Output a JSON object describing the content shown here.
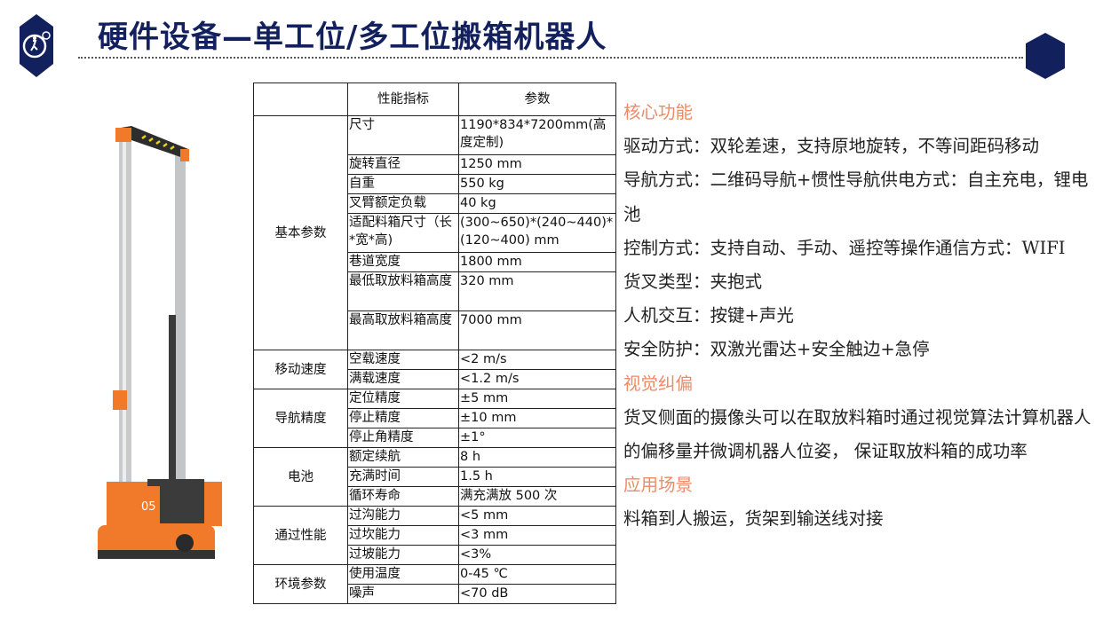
{
  "header": {
    "title": "硬件设备—单工位/多工位搬箱机器人",
    "logo_icon": "gear-worker-hexagon-icon",
    "accent_color": "#12205e"
  },
  "robot_image": {
    "label": "05"
  },
  "spec_table": {
    "headers": [
      "",
      "性能指标",
      "参数"
    ],
    "groups": [
      {
        "name": "基本参数",
        "rows": [
          {
            "metric": "尺寸",
            "value": "1190*834*7200mm(高度定制)"
          },
          {
            "metric": "旋转直径",
            "value": "1250 mm"
          },
          {
            "metric": "自重",
            "value": "550 kg"
          },
          {
            "metric": "叉臂额定负载",
            "value": "40 kg"
          },
          {
            "metric": "适配料箱尺寸（长*宽*高)",
            "value": "(300~650)*(240~440)*(120~400) mm"
          },
          {
            "metric": "巷道宽度",
            "value": "1800 mm"
          },
          {
            "metric": "最低取放料箱高度",
            "value": "320 mm"
          },
          {
            "metric": "最高取放料箱高度",
            "value": "7000 mm"
          }
        ]
      },
      {
        "name": "移动速度",
        "rows": [
          {
            "metric": "空载速度",
            "value": "<2 m/s"
          },
          {
            "metric": "满载速度",
            "value": "<1.2 m/s"
          }
        ]
      },
      {
        "name": "导航精度",
        "rows": [
          {
            "metric": "定位精度",
            "value": "±5 mm"
          },
          {
            "metric": "停止精度",
            "value": "±10 mm"
          },
          {
            "metric": "停止角精度",
            "value": "±1°"
          }
        ]
      },
      {
        "name": "电池",
        "rows": [
          {
            "metric": "额定续航",
            "value": "8 h"
          },
          {
            "metric": "充满时间",
            "value": "1.5 h"
          },
          {
            "metric": "循环寿命",
            "value": "满充满放 500 次"
          }
        ]
      },
      {
        "name": "通过性能",
        "rows": [
          {
            "metric": "过沟能力",
            "value": "<5 mm"
          },
          {
            "metric": "过坎能力",
            "value": "<3 mm"
          },
          {
            "metric": "过坡能力",
            "value": "<3%"
          }
        ]
      },
      {
        "name": "环境参数",
        "rows": [
          {
            "metric": "使用温度",
            "value": "0-45 ℃"
          },
          {
            "metric": "噪声",
            "value": "<70 dB"
          }
        ]
      }
    ]
  },
  "features": {
    "heading_color": "#ee8a66",
    "core_title": "核心功能",
    "core_items": [
      "驱动方式：双轮差速，支持原地旋转，不等间距码移动",
      "导航方式：二维码导航+惯性导航供电方式：自主充电，锂电池",
      "控制方式：支持自动、手动、遥控等操作通信方式：WIFI",
      "货叉类型：夹抱式",
      "人机交互：按键+声光",
      "安全防护：双激光雷达+安全触边+急停"
    ],
    "vision_title": "视觉纠偏",
    "vision_text": "货叉侧面的摄像头可以在取放料箱时通过视觉算法计算机器人的偏移量并微调机器人位姿， 保证取放料箱的成功率",
    "scenario_title": "应用场景",
    "scenario_text": "料箱到人搬运，货架到输送线对接"
  }
}
